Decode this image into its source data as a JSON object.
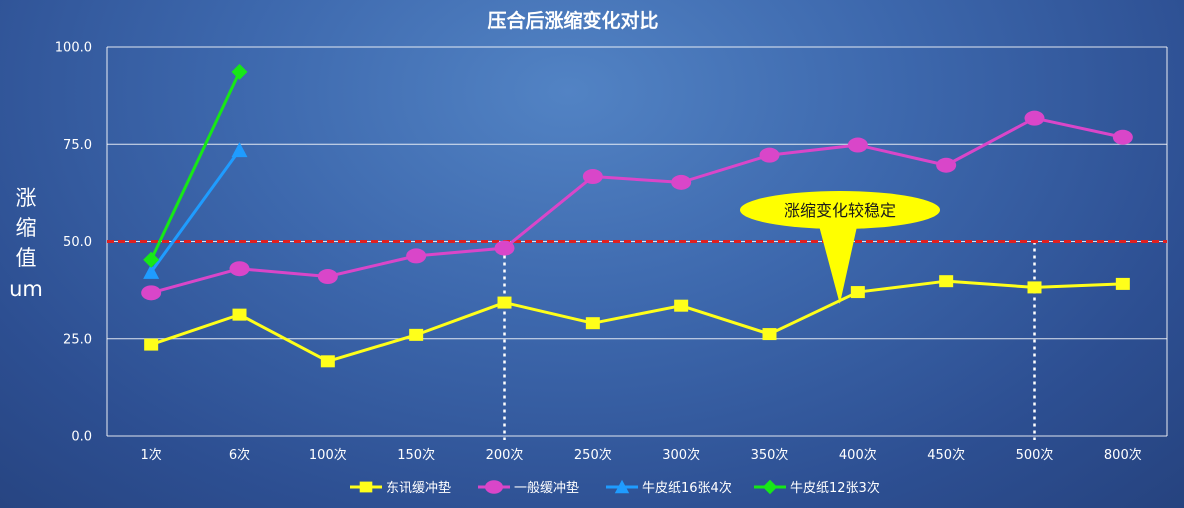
{
  "chart_data": {
    "type": "line",
    "title": "压合后涨缩变化对比",
    "ylabel_chars": [
      "涨",
      "缩",
      "值",
      "um"
    ],
    "categories": [
      "1次",
      "6次",
      "100次",
      "150次",
      "200次",
      "250次",
      "300次",
      "350次",
      "400次",
      "450次",
      "500次",
      "800次"
    ],
    "ylim": [
      0,
      100
    ],
    "yticks": [
      "0.0",
      "25.0",
      "50.0",
      "75.0",
      "100.0"
    ],
    "ytick_values": [
      0,
      25,
      50,
      75,
      100
    ],
    "grid": true,
    "legend_position": "bottom",
    "series": [
      {
        "name": "东讯缓冲垫",
        "color": "#ffff1a",
        "marker": "square",
        "values": [
          23.5,
          31.2,
          19.2,
          26,
          34.3,
          29,
          33.5,
          26.2,
          37,
          39.8,
          38.2,
          39.1
        ]
      },
      {
        "name": "一般缓冲垫",
        "color": "#d946c9",
        "marker": "circle",
        "values": [
          36.8,
          43,
          41,
          46.3,
          48.3,
          66.7,
          65.2,
          72.2,
          74.8,
          69.6,
          81.7,
          76.8
        ]
      },
      {
        "name": "牛皮纸16张4次",
        "color": "#1f9cff",
        "marker": "triangle",
        "values": [
          42.2,
          73.5,
          null,
          null,
          null,
          null,
          null,
          null,
          null,
          null,
          null,
          null
        ]
      },
      {
        "name": "牛皮纸12张3次",
        "color": "#17e817",
        "marker": "diamond",
        "values": [
          45.3,
          93.6,
          null,
          null,
          null,
          null,
          null,
          null,
          null,
          null,
          null,
          null
        ]
      }
    ],
    "reference_line": {
      "value": 50,
      "color": "#e02020"
    },
    "vertical_markers": [
      "200次",
      "500次"
    ],
    "annotation": {
      "text": "涨缩变化较稳定",
      "target_category": "400次",
      "target_value": 36
    }
  }
}
